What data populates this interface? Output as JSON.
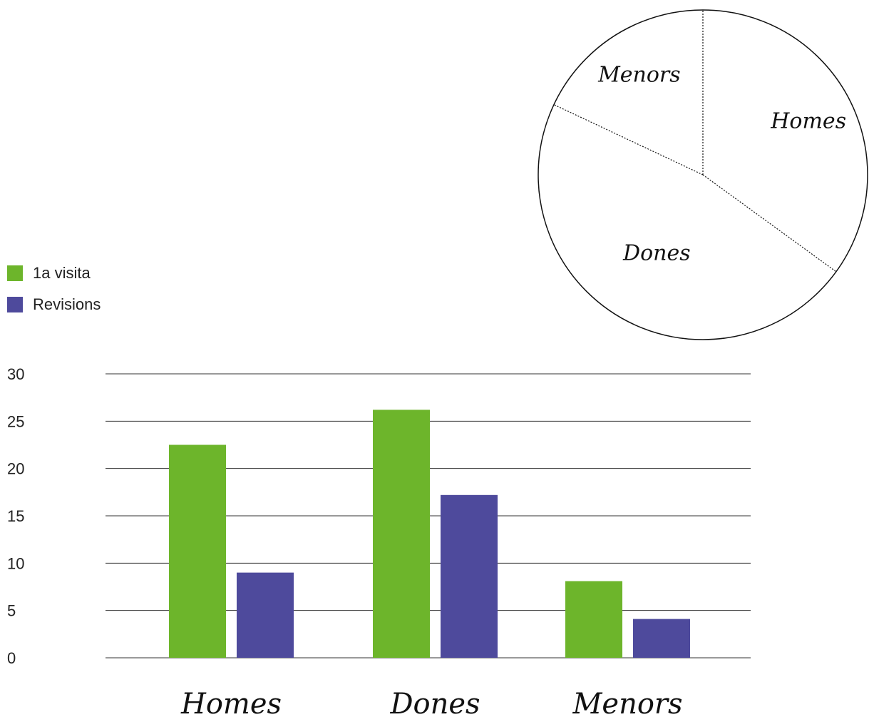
{
  "colors": {
    "first_visit": "#6db52b",
    "revisions": "#4e4a9c",
    "gridline": "#333333",
    "pie_outline": "#111111"
  },
  "chart_data": [
    {
      "type": "bar",
      "categories": [
        "Homes",
        "Dones",
        "Menors"
      ],
      "series": [
        {
          "name": "1a visita",
          "values": [
            22.5,
            26.2,
            8.1
          ]
        },
        {
          "name": "Revisions",
          "values": [
            9.0,
            17.2,
            4.1
          ]
        }
      ],
      "ylim": [
        0,
        30
      ],
      "yticks": [
        "0",
        "5",
        "10",
        "15",
        "20",
        "25",
        "30"
      ],
      "grid": true,
      "legend": "top-left"
    },
    {
      "type": "pie",
      "labels": [
        "Homes",
        "Dones",
        "Menors"
      ],
      "values": [
        35,
        47,
        18
      ],
      "style": "outline-dashed"
    }
  ]
}
